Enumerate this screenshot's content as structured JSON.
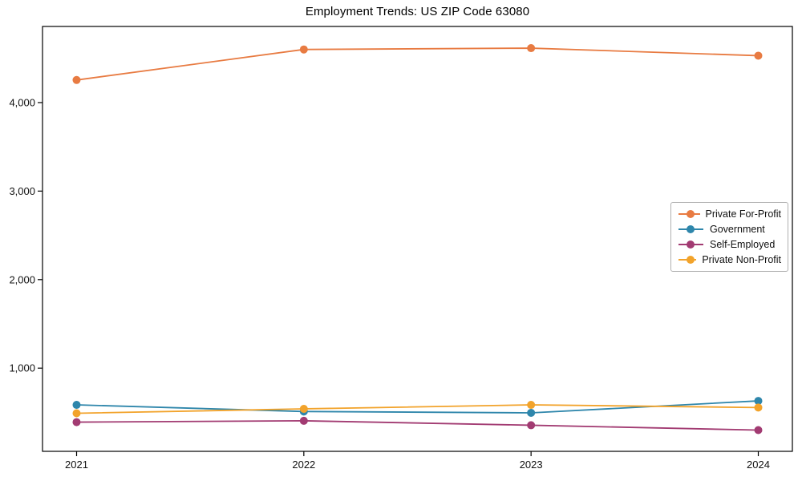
{
  "chart_data": {
    "type": "line",
    "title": "Employment Trends: US ZIP Code 63080",
    "categories": [
      "2021",
      "2022",
      "2023",
      "2024"
    ],
    "series": [
      {
        "name": "Private For-Profit",
        "color": "#E87B42",
        "values": [
          4255,
          4600,
          4615,
          4530
        ]
      },
      {
        "name": "Government",
        "color": "#2E86AB",
        "values": [
          585,
          510,
          495,
          630
        ]
      },
      {
        "name": "Self-Employed",
        "color": "#A23B72",
        "values": [
          390,
          405,
          355,
          300
        ]
      },
      {
        "name": "Private Non-Profit",
        "color": "#F2A32B",
        "values": [
          490,
          540,
          585,
          555
        ]
      }
    ],
    "xlabel": "",
    "ylabel": "",
    "ylim": [
      60,
      4860
    ],
    "yticks": [
      1000,
      2000,
      3000,
      4000
    ],
    "ytick_labels": [
      "1,000",
      "2,000",
      "3,000",
      "4,000"
    ],
    "grid": false,
    "legend_position": "right-center",
    "marker": "circle",
    "axis_color": "#000000"
  }
}
